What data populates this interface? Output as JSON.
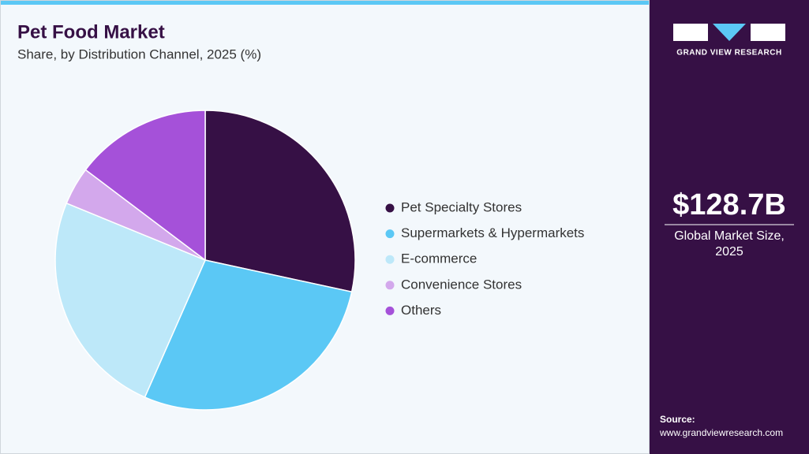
{
  "chart_data": {
    "type": "pie",
    "title": "Pet Food Market",
    "subtitle": "Share, by Distribution Channel, 2025 (%)",
    "categories": [
      "Pet Specialty Stores",
      "Supermarkets & Hypermarkets",
      "E-commerce",
      "Convenience Stores",
      "Others"
    ],
    "values": [
      28.4,
      28.2,
      24.6,
      4.1,
      14.7
    ],
    "colors": [
      "#361045",
      "#5bc8f5",
      "#bde8f9",
      "#d3a8ec",
      "#a551d9"
    ],
    "legend": "right"
  },
  "sidebar": {
    "brand": "GRAND VIEW RESEARCH",
    "market_size": "$128.7B",
    "market_size_label": "Global Market Size, 2025",
    "source_label": "Source:",
    "source_url": "www.grandviewresearch.com"
  }
}
